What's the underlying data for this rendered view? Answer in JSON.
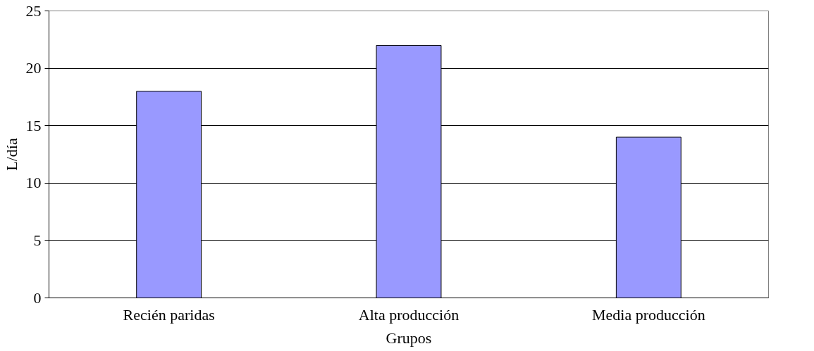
{
  "chart_data": {
    "type": "bar",
    "xlabel": "Grupos",
    "ylabel": "L/día",
    "categories": [
      "Recién paridas",
      "Alta producción",
      "Media producción"
    ],
    "values": [
      18,
      22,
      14
    ],
    "color": "#9999ff",
    "ylim": [
      0,
      25
    ],
    "yticks": [
      0,
      5,
      10,
      15,
      20,
      25
    ],
    "grid": "y"
  }
}
